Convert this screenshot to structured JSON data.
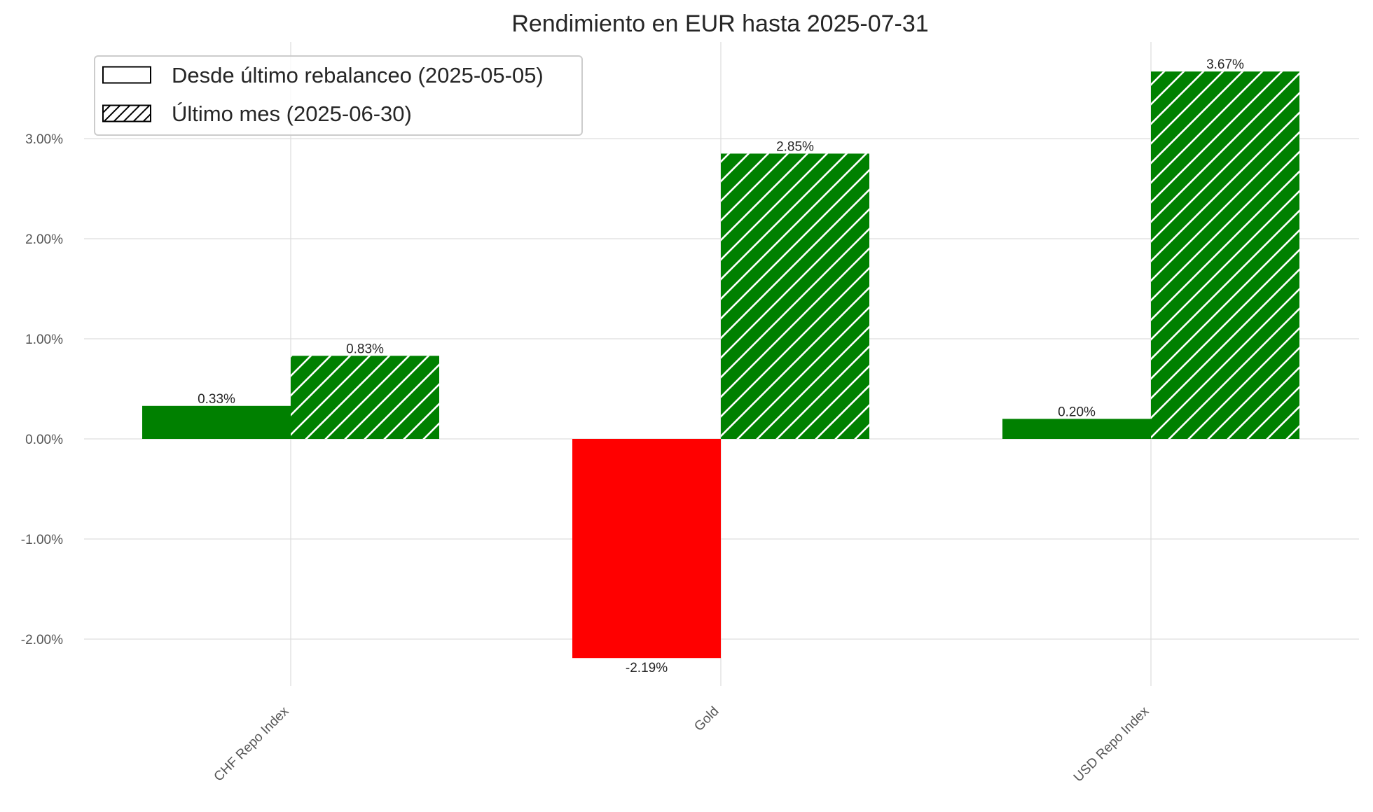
{
  "chart_data": {
    "type": "bar",
    "title": "Rendimiento en EUR hasta 2025-07-31",
    "xlabel": "",
    "ylabel": "",
    "categories": [
      "CHF Repo Index",
      "Gold",
      "USD Repo Index"
    ],
    "series": [
      {
        "name": "Desde último rebalanceo (2025-05-05)",
        "values": [
          0.33,
          -2.19,
          0.2
        ],
        "labels": [
          "0.33%",
          "-2.19%",
          "0.20%"
        ],
        "hatch": "none"
      },
      {
        "name": "Último mes (2025-06-30)",
        "values": [
          0.83,
          2.85,
          3.67
        ],
        "labels": [
          "0.83%",
          "2.85%",
          "3.67%"
        ],
        "hatch": "diagonal"
      }
    ],
    "y_ticks": [
      -2,
      -1,
      0,
      1,
      2,
      3
    ],
    "y_tick_labels": [
      "-2.00%",
      "-1.00%",
      "0.00%",
      "1.00%",
      "2.00%",
      "3.00%"
    ],
    "ylim": [
      -2.5,
      3.9
    ],
    "grid": true,
    "legend_position": "top-left",
    "colors": {
      "positive": "#008000",
      "negative": "#ff0000",
      "hatch_line": "#ffffff",
      "grid": "#dedede",
      "text": "#262626",
      "tick_text": "#555555"
    }
  }
}
